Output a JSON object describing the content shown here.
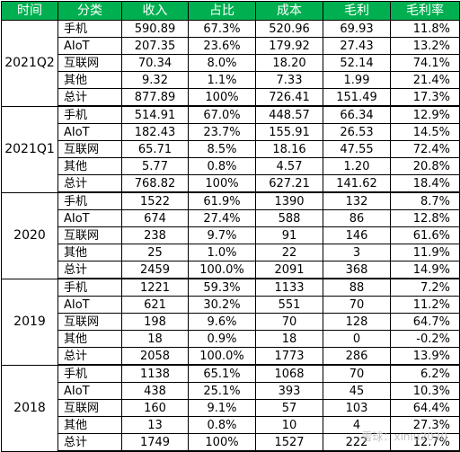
{
  "headers": [
    "时间",
    "分类",
    "收入",
    "占比",
    "成本",
    "毛利",
    "毛利率"
  ],
  "groups": [
    {
      "period": "2021Q2",
      "rows": [
        {
          "cat": "手机",
          "rev": "590.89",
          "share": "67.3%",
          "cost": "520.96",
          "gp": "69.93",
          "gm": "11.8%"
        },
        {
          "cat": "AIoT",
          "rev": "207.35",
          "share": "23.6%",
          "cost": "179.92",
          "gp": "27.43",
          "gm": "13.2%"
        },
        {
          "cat": "互联网",
          "rev": "70.34",
          "share": "8.0%",
          "cost": "18.20",
          "gp": "52.14",
          "gm": "74.1%"
        },
        {
          "cat": "其他",
          "rev": "9.32",
          "share": "1.1%",
          "cost": "7.33",
          "gp": "1.99",
          "gm": "21.4%"
        },
        {
          "cat": "总计",
          "rev": "877.89",
          "share": "100%",
          "cost": "726.41",
          "gp": "151.49",
          "gm": "17.3%"
        }
      ]
    },
    {
      "period": "2021Q1",
      "rows": [
        {
          "cat": "手机",
          "rev": "514.91",
          "share": "67.0%",
          "cost": "448.57",
          "gp": "66.34",
          "gm": "12.9%"
        },
        {
          "cat": "AIoT",
          "rev": "182.43",
          "share": "23.7%",
          "cost": "155.91",
          "gp": "26.53",
          "gm": "14.5%"
        },
        {
          "cat": "互联网",
          "rev": "65.71",
          "share": "8.5%",
          "cost": "18.16",
          "gp": "47.55",
          "gm": "72.4%"
        },
        {
          "cat": "其他",
          "rev": "5.77",
          "share": "0.8%",
          "cost": "4.57",
          "gp": "1.20",
          "gm": "20.8%"
        },
        {
          "cat": "总计",
          "rev": "768.82",
          "share": "100%",
          "cost": "627.21",
          "gp": "141.62",
          "gm": "18.4%"
        }
      ]
    },
    {
      "period": "2020",
      "rows": [
        {
          "cat": "手机",
          "rev": "1522",
          "share": "61.9%",
          "cost": "1390",
          "gp": "132",
          "gm": "8.7%"
        },
        {
          "cat": "AIoT",
          "rev": "674",
          "share": "27.4%",
          "cost": "588",
          "gp": "86",
          "gm": "12.8%"
        },
        {
          "cat": "互联网",
          "rev": "238",
          "share": "9.7%",
          "cost": "91",
          "gp": "146",
          "gm": "61.6%"
        },
        {
          "cat": "其他",
          "rev": "25",
          "share": "1.0%",
          "cost": "22",
          "gp": "3",
          "gm": "11.9%"
        },
        {
          "cat": "总计",
          "rev": "2459",
          "share": "100.0%",
          "cost": "2091",
          "gp": "368",
          "gm": "14.9%"
        }
      ]
    },
    {
      "period": "2019",
      "rows": [
        {
          "cat": "手机",
          "rev": "1221",
          "share": "59.3%",
          "cost": "1133",
          "gp": "88",
          "gm": "7.2%"
        },
        {
          "cat": "AIoT",
          "rev": "621",
          "share": "30.2%",
          "cost": "551",
          "gp": "70",
          "gm": "11.2%"
        },
        {
          "cat": "互联网",
          "rev": "198",
          "share": "9.6%",
          "cost": "70",
          "gp": "128",
          "gm": "64.7%"
        },
        {
          "cat": "其他",
          "rev": "18",
          "share": "0.9%",
          "cost": "18",
          "gp": "0",
          "gm": "-0.2%"
        },
        {
          "cat": "总计",
          "rev": "2058",
          "share": "100.0%",
          "cost": "1773",
          "gp": "286",
          "gm": "13.9%"
        }
      ]
    },
    {
      "period": "2018",
      "rows": [
        {
          "cat": "手机",
          "rev": "1138",
          "share": "65.1%",
          "cost": "1068",
          "gp": "70",
          "gm": "6.2%"
        },
        {
          "cat": "AIoT",
          "rev": "438",
          "share": "25.1%",
          "cost": "393",
          "gp": "45",
          "gm": "10.3%"
        },
        {
          "cat": "互联网",
          "rev": "160",
          "share": "9.1%",
          "cost": "57",
          "gp": "103",
          "gm": "64.4%"
        },
        {
          "cat": "其他",
          "rev": "13",
          "share": "0.8%",
          "cost": "10",
          "gp": "4",
          "gm": "27.3%"
        },
        {
          "cat": "总计",
          "rev": "1749",
          "share": "100%",
          "cost": "1527",
          "gp": "222",
          "gm": "12.7%"
        }
      ]
    }
  ],
  "watermark": "雪球：xiniu2020"
}
